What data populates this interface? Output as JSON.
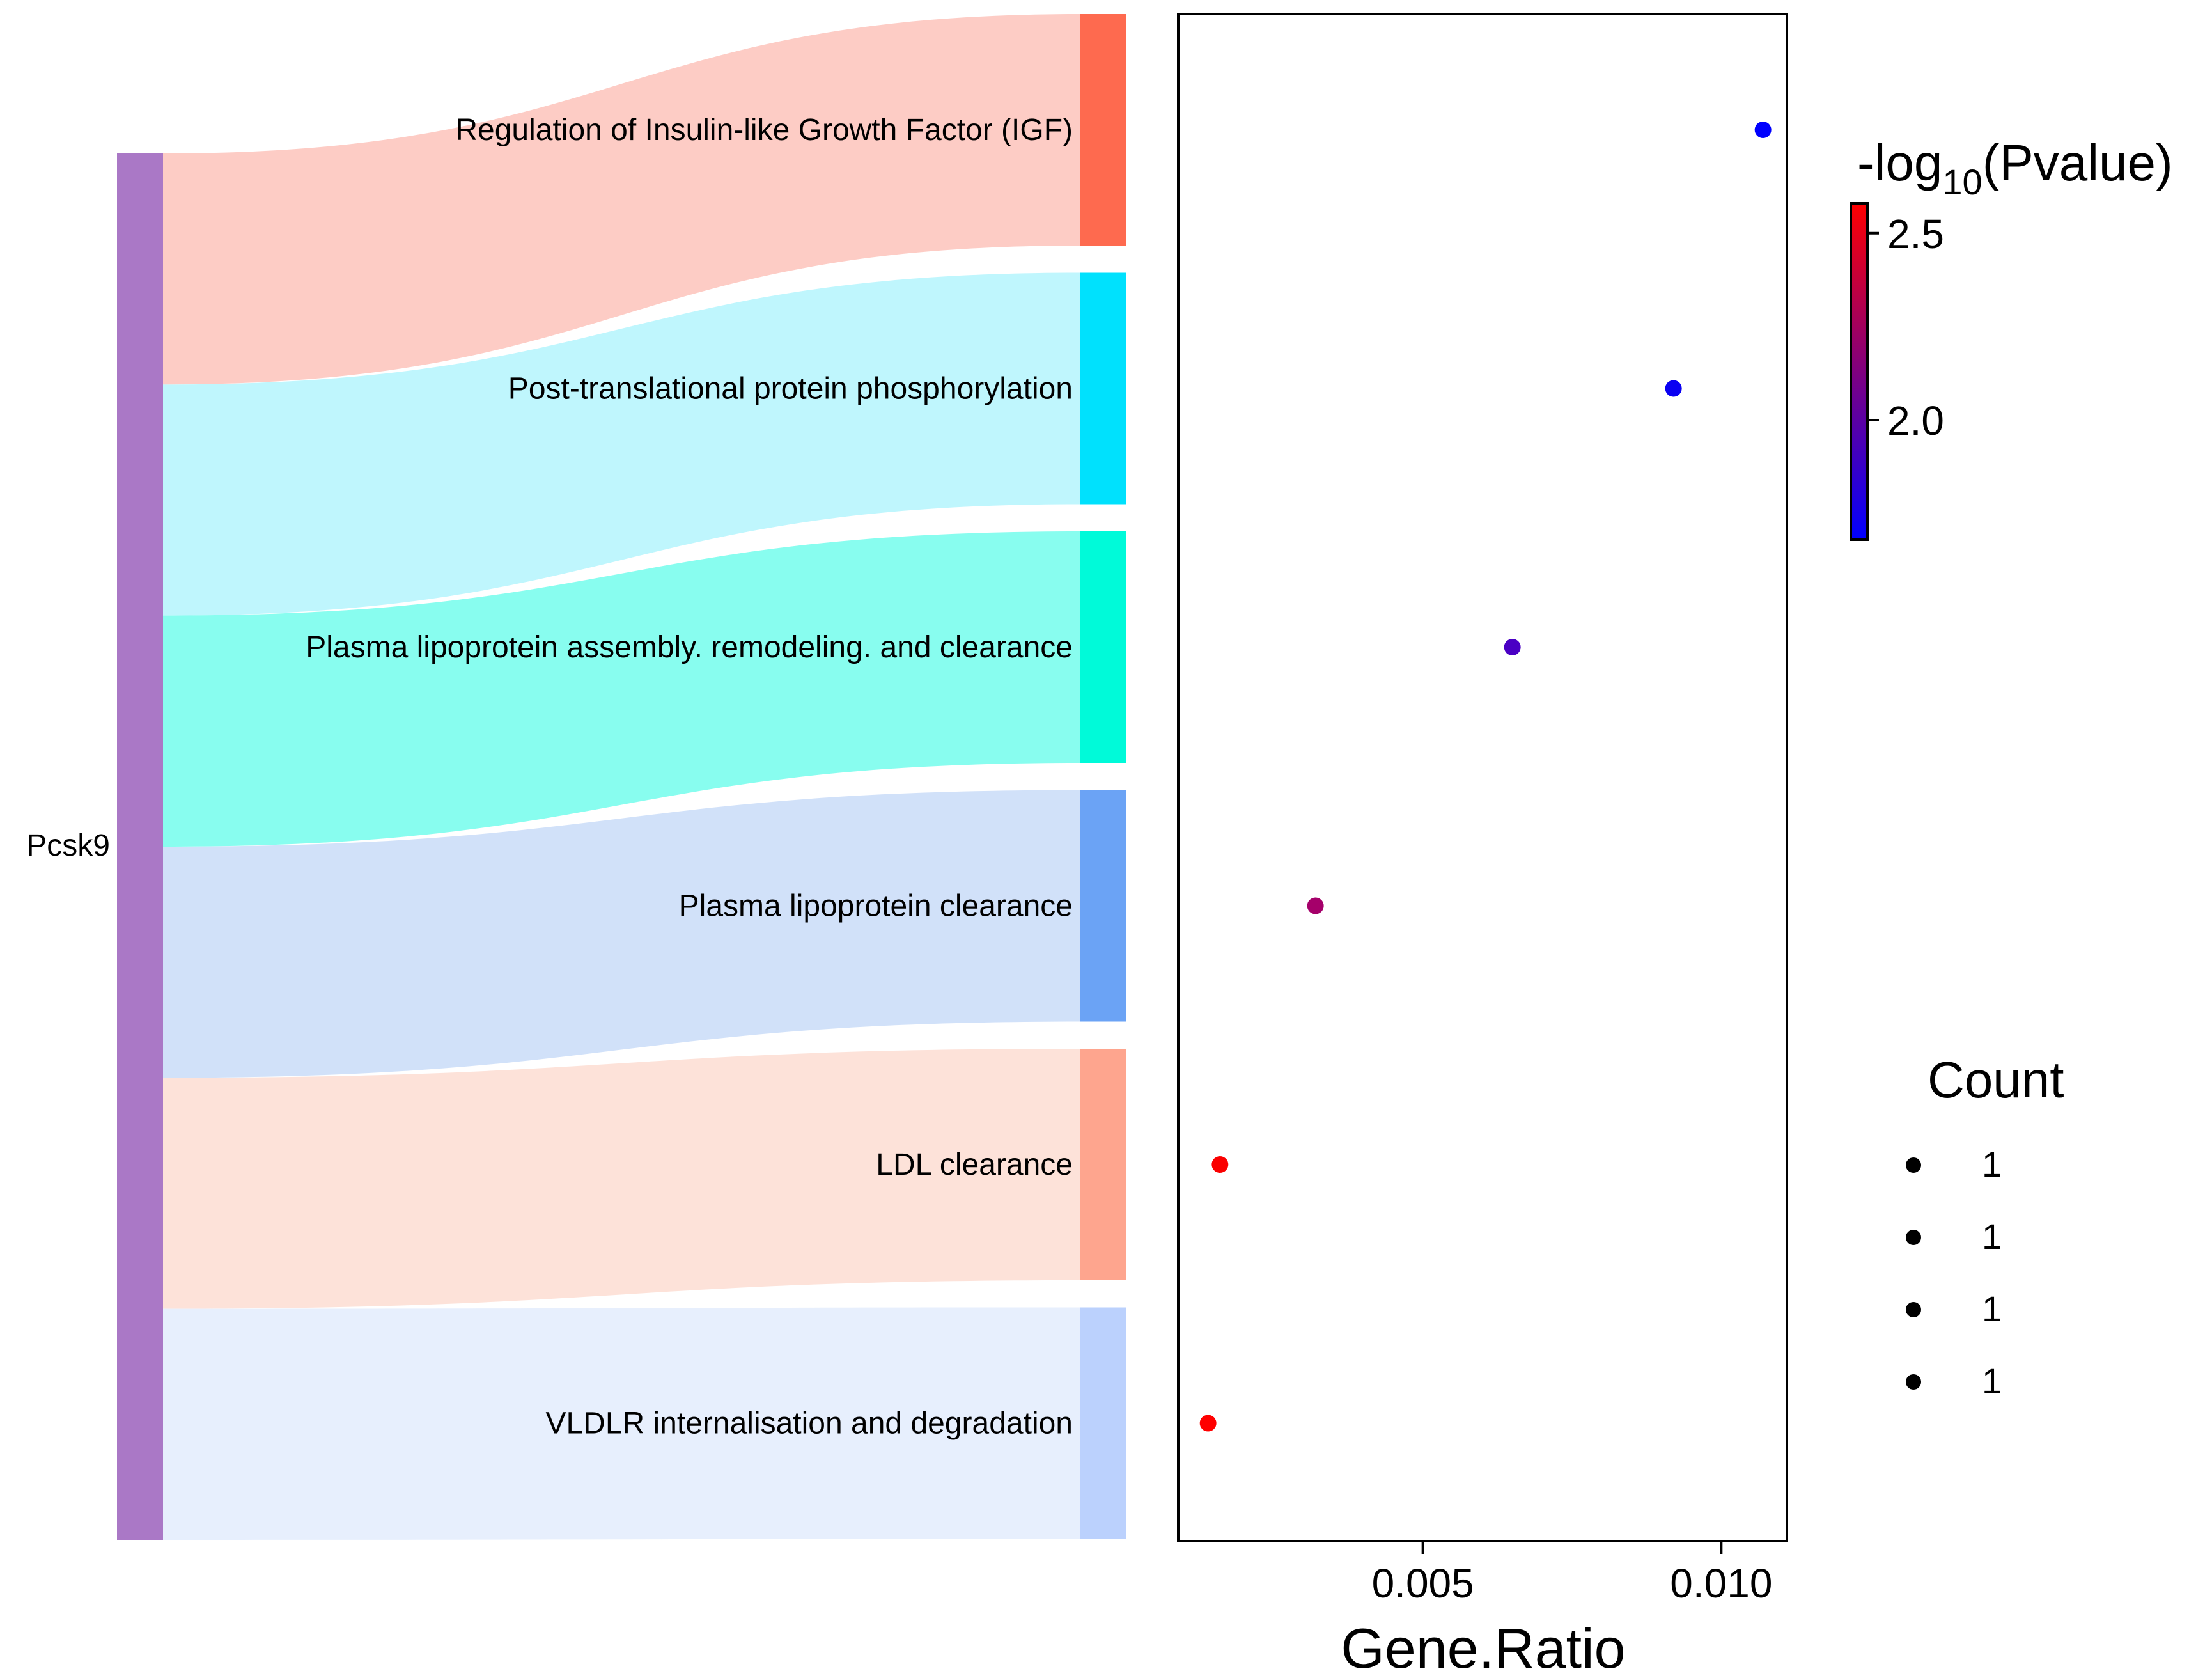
{
  "gene": "Pcsk9",
  "pathways": [
    {
      "name": "Regulation of Insulin-like Growth Factor (IGF)",
      "node_color": "#fe6a4f",
      "ribbon_color": "#fdc9c2"
    },
    {
      "name": "Post-translational protein phosphorylation",
      "node_color": "#00e1fd",
      "ribbon_color": "#bcf5fd"
    },
    {
      "name": "Plasma lipoprotein assembly. remodeling. and clearance",
      "node_color": "#00fad9",
      "ribbon_color": "#82fdee"
    },
    {
      "name": "Plasma lipoprotein clearance",
      "node_color": "#6ba3f5",
      "ribbon_color": "#cfdff9"
    },
    {
      "name": "LDL clearance",
      "node_color": "#fea58e",
      "ribbon_color": "#fde0d7"
    },
    {
      "name": "VLDLR internalisation and degradation",
      "node_color": "#bbd1fd",
      "ribbon_color": "#e6eefd"
    }
  ],
  "gene_node_color": "#aa78c6",
  "chart_data": {
    "type": "scatter",
    "xlabel": "Gene.Ratio",
    "ylabel": "",
    "xlim": [
      0.0009,
      0.0111
    ],
    "x_ticks": [
      0.005,
      0.01
    ],
    "x_tick_labels": [
      "0.005",
      "0.010"
    ],
    "series": [
      {
        "name": "Regulation of Insulin-like Growth Factor (IGF)",
        "gene_ratio": 0.0107,
        "neg_log10_p": 1.72,
        "count": 1,
        "color": "#0000fe"
      },
      {
        "name": "Post-translational protein phosphorylation",
        "gene_ratio": 0.0092,
        "neg_log10_p": 1.74,
        "count": 1,
        "color": "#0a00f2"
      },
      {
        "name": "Plasma lipoprotein assembly. remodeling. and clearance",
        "gene_ratio": 0.0065,
        "neg_log10_p": 1.87,
        "count": 1,
        "color": "#4a00c4"
      },
      {
        "name": "Plasma lipoprotein clearance",
        "gene_ratio": 0.0032,
        "neg_log10_p": 2.22,
        "count": 1,
        "color": "#a5006a"
      },
      {
        "name": "LDL clearance",
        "gene_ratio": 0.0016,
        "neg_log10_p": 2.52,
        "count": 1,
        "color": "#fa0000"
      },
      {
        "name": "VLDLR internalisation and degradation",
        "gene_ratio": 0.0014,
        "neg_log10_p": 2.55,
        "count": 1,
        "color": "#ff0000"
      }
    ],
    "colorbar": {
      "title_prefix": "-log",
      "title_subscript": "10",
      "title_suffix": "(Pvalue)",
      "range": [
        1.68,
        2.58
      ],
      "ticks": [
        2.0,
        2.5
      ],
      "tick_labels": [
        "2.0",
        "2.5"
      ],
      "color_low": "#0000ff",
      "color_high": "#ff0000"
    },
    "size_legend": {
      "title": "Count",
      "entries": [
        "1",
        "1",
        "1",
        "1"
      ],
      "marker_color": "#000000"
    }
  }
}
